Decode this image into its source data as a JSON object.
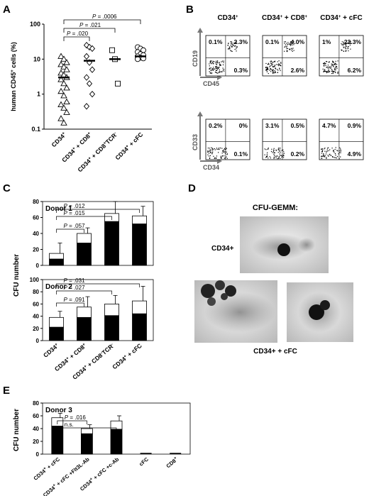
{
  "panels": {
    "A": {
      "letter": "A"
    },
    "B": {
      "letter": "B"
    },
    "C": {
      "letter": "C"
    },
    "D": {
      "letter": "D"
    },
    "E": {
      "letter": "E"
    }
  },
  "chart_data": [
    {
      "panel": "A",
      "type": "scatter",
      "ylabel": "human CD45+ cells (%)",
      "yscale": "log",
      "ylim": [
        0.1,
        100
      ],
      "yticks": [
        "0.1",
        "1",
        "10",
        "100"
      ],
      "categories": [
        "CD34+",
        "CD34+ + CD8+",
        "CD34+ + CD8+TCR-",
        "CD34+ + cFC"
      ],
      "markers": [
        "triangle",
        "diamond",
        "square",
        "circle"
      ],
      "points": [
        [
          12,
          10,
          8,
          7,
          6,
          5,
          4,
          3.5,
          3,
          2.6,
          2,
          1.5,
          1.2,
          0.9,
          0.6,
          0.5,
          0.4,
          0.3,
          0.2,
          0.15
        ],
        [
          25,
          22,
          20,
          12,
          8,
          5,
          3,
          2,
          1,
          0.45
        ],
        [
          18,
          10,
          2
        ],
        [
          22,
          20,
          18,
          16,
          14,
          13,
          12,
          11,
          10.5,
          10
        ]
      ],
      "medians": [
        3,
        9,
        10,
        12
      ],
      "pvalues": [
        {
          "from": "CD34+",
          "to": "CD34+ + CD8+",
          "text": "P = .020"
        },
        {
          "from": "CD34+",
          "to": "CD34+ + CD8+TCR-",
          "text": "P = .021"
        },
        {
          "from": "CD34+",
          "to": "CD34+ + cFC",
          "text": "P = .0006"
        }
      ]
    },
    {
      "panel": "B",
      "type": "scatter",
      "columns": [
        "CD34+",
        "CD34+ + CD8+",
        "CD34+ + cFC"
      ],
      "rows": [
        {
          "xaxis": "CD45",
          "yaxis": "CD19",
          "quadrants": [
            {
              "ul": "0.1%",
              "ur": "2.3%",
              "lr": "0.3%"
            },
            {
              "ul": "0.1%",
              "ur": "4.0%",
              "lr": "2.6%"
            },
            {
              "ul": "1%",
              "ur": "22.3%",
              "lr": "6.2%"
            }
          ]
        },
        {
          "xaxis": "CD34",
          "yaxis": "CD33",
          "quadrants": [
            {
              "ul": "0.2%",
              "ur": "0%",
              "lr": "0.1%"
            },
            {
              "ul": "3.1%",
              "ur": "0.5%",
              "lr": "0.2%"
            },
            {
              "ul": "4.7%",
              "ur": "0.9%",
              "lr": "4.9%"
            }
          ]
        }
      ]
    },
    {
      "panel": "C",
      "type": "bar",
      "ylabel": "CFU number",
      "categories": [
        "CD34+",
        "CD34+ + CD8+",
        "CD34+ + CD8-TCR-",
        "CD34+ + cFC"
      ],
      "subcharts": [
        {
          "title": "Donor 1",
          "ylim": [
            0,
            80
          ],
          "yticks": [
            "0",
            "20",
            "40",
            "60",
            "80"
          ],
          "series": [
            {
              "color": "#000000",
              "values": [
                8,
                28,
                55,
                52
              ]
            },
            {
              "color": "#ffffff",
              "values": [
                7,
                12,
                10,
                10
              ]
            }
          ],
          "errors": [
            13,
            7,
            15,
            12
          ],
          "pvalues": [
            {
              "from": 0,
              "to": 1,
              "text": "P = .057"
            },
            {
              "from": 0,
              "to": 2,
              "text": "P = .015"
            },
            {
              "from": 0,
              "to": 3,
              "text": "P = .012"
            }
          ]
        },
        {
          "title": "Donor 2",
          "ylim": [
            0,
            100
          ],
          "yticks": [
            "0",
            "20",
            "40",
            "60",
            "80",
            "100"
          ],
          "series": [
            {
              "color": "#000000",
              "values": [
                22,
                38,
                41,
                44
              ]
            },
            {
              "color": "#ffffff",
              "values": [
                16,
                17,
                19,
                21
              ]
            }
          ],
          "errors": [
            10,
            17,
            14,
            24
          ],
          "pvalues": [
            {
              "from": 0,
              "to": 1,
              "text": "P = .091"
            },
            {
              "from": 0,
              "to": 2,
              "text": "P = .027"
            },
            {
              "from": 0,
              "to": 3,
              "text": "P = .031"
            }
          ]
        }
      ]
    },
    {
      "panel": "E",
      "type": "bar",
      "title": "Donor 3",
      "ylabel": "CFU number",
      "ylim": [
        0,
        80
      ],
      "yticks": [
        "0",
        "20",
        "40",
        "60",
        "80"
      ],
      "categories": [
        "CD34+ + cFC",
        "CD34+ + cFC +Flt3L-Ab",
        "CD34+ + cFC +c-Ab",
        "cFC",
        "CD8+"
      ],
      "series": [
        {
          "color": "#000000",
          "values": [
            44,
            32,
            39,
            0,
            0
          ]
        },
        {
          "color": "#ffffff",
          "values": [
            13,
            8,
            13,
            0,
            0
          ]
        }
      ],
      "errors": [
        7,
        6,
        8,
        0,
        0
      ],
      "pvalues": [
        {
          "from": 0,
          "to": 1,
          "text": "P = .016"
        },
        {
          "from": 0,
          "to": 2,
          "text": "n.s."
        }
      ]
    }
  ],
  "panel_d": {
    "title": "CFU-GEMM:",
    "label_top": "CD34+",
    "label_bottom": "CD34+ + cFC"
  }
}
